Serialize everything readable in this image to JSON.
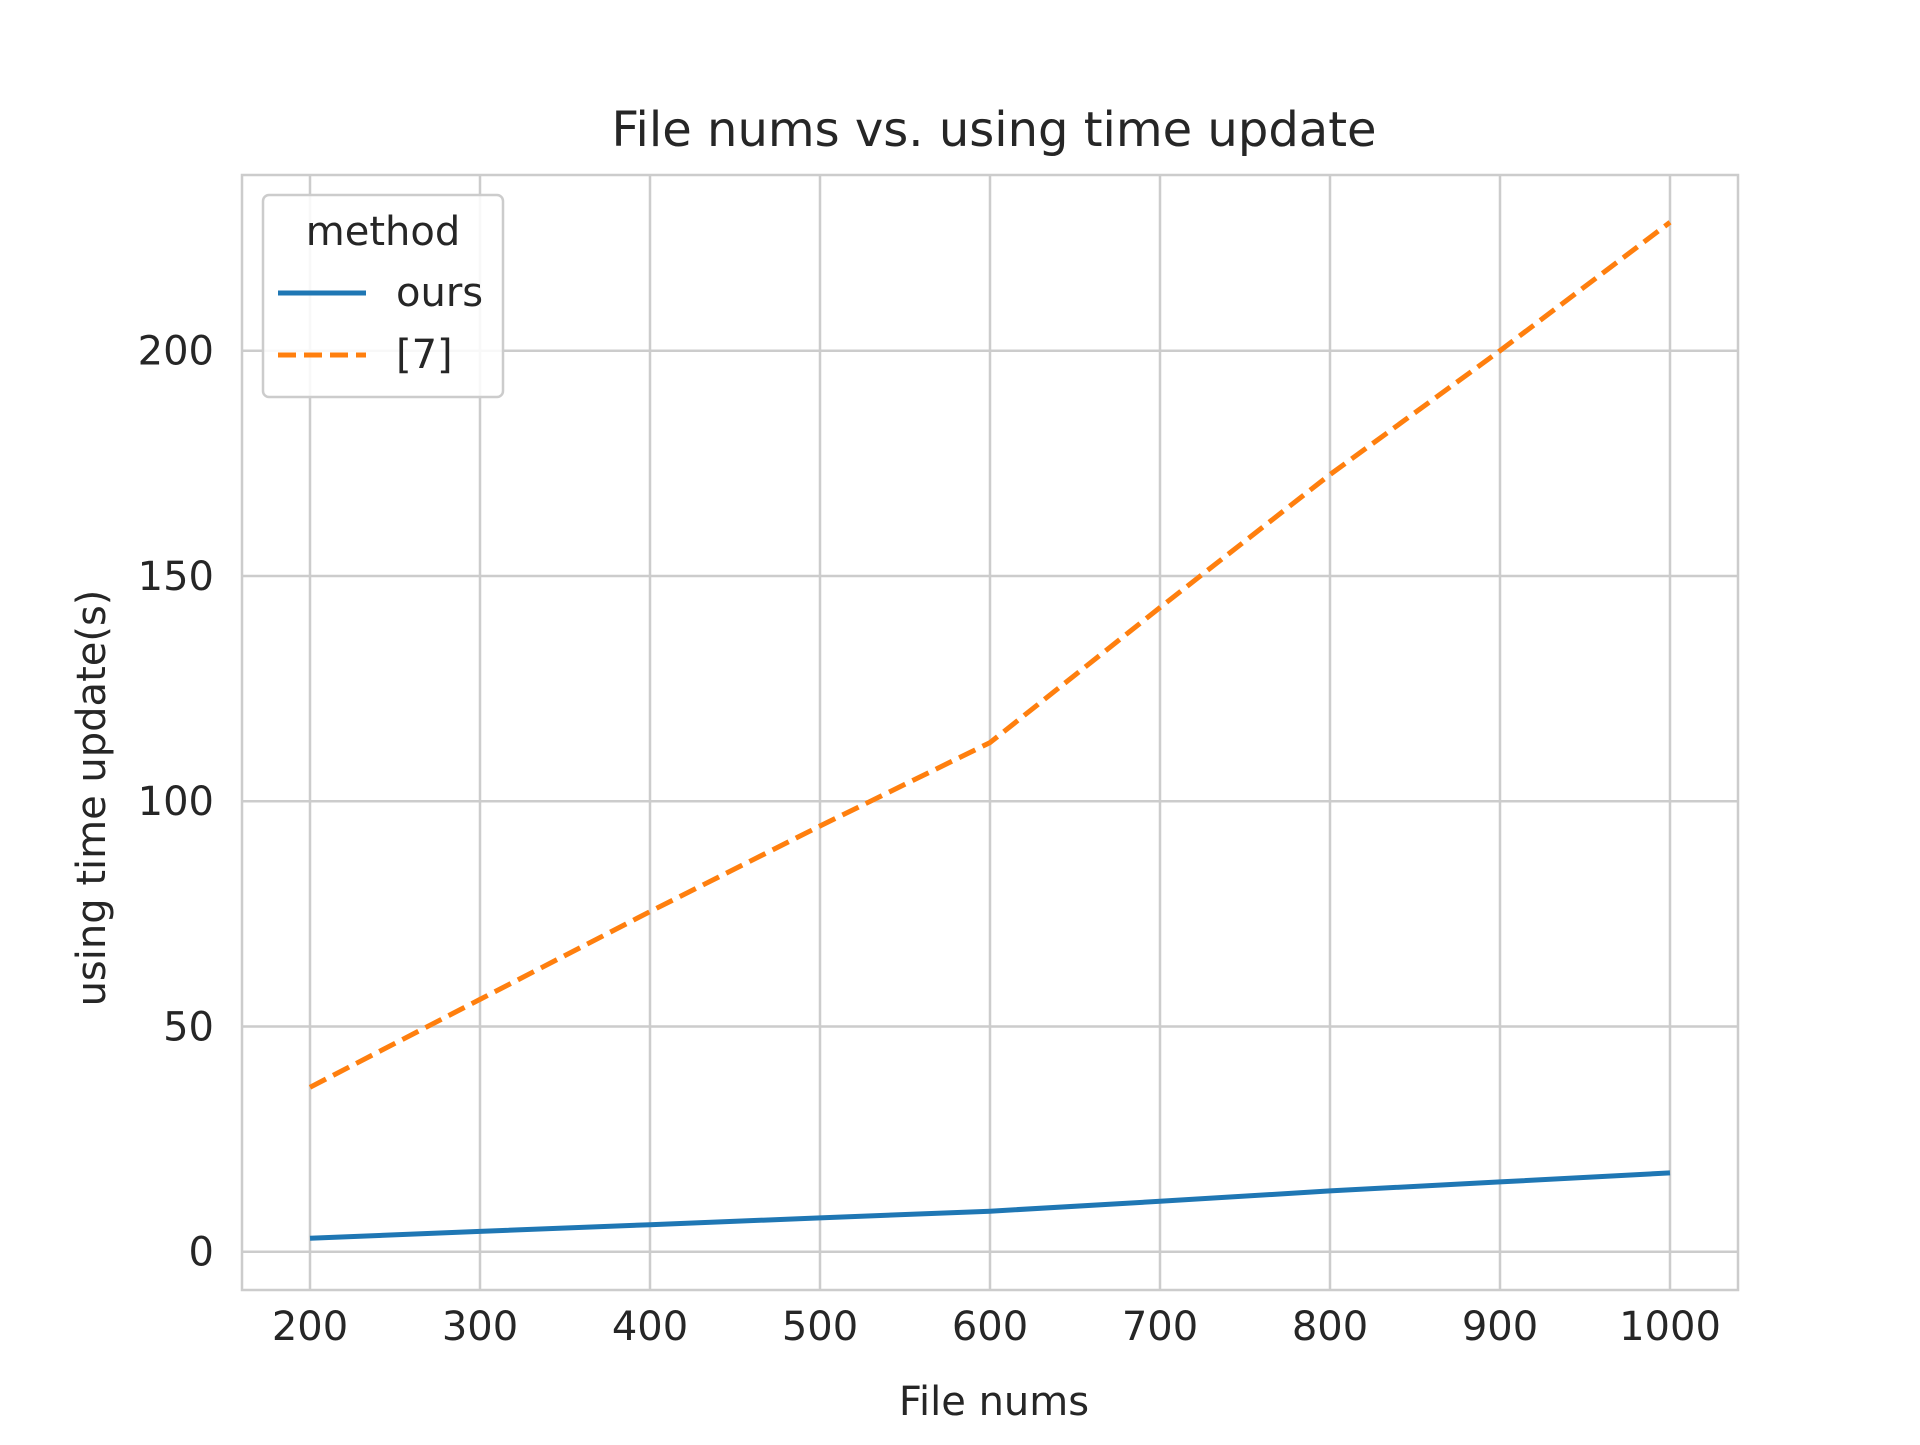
{
  "chart_data": {
    "type": "line",
    "title": "File nums vs. using time update",
    "xlabel": "File nums",
    "ylabel": "using time update(s)",
    "x": [
      200,
      300,
      400,
      500,
      600,
      700,
      800,
      900,
      1000
    ],
    "xticks": [
      200,
      300,
      400,
      500,
      600,
      700,
      800,
      900,
      1000
    ],
    "yticks": [
      0,
      50,
      100,
      150,
      200
    ],
    "xlim": [
      160,
      1040
    ],
    "ylim": [
      -8.5,
      239
    ],
    "grid": true,
    "legend": {
      "title": "method",
      "placement": "top-left"
    },
    "series": [
      {
        "name": "ours",
        "values": [
          3.0,
          4.5,
          6.0,
          7.5,
          9.0,
          11.2,
          13.5,
          15.5,
          17.5
        ],
        "color": "#1f77b4",
        "style": "solid"
      },
      {
        "name": "[7]",
        "values": [
          36.5,
          56.0,
          75.5,
          94.5,
          113.0,
          143.0,
          172.5,
          200.0,
          228.5
        ],
        "color": "#ff7f0e",
        "style": "dashed"
      }
    ]
  }
}
